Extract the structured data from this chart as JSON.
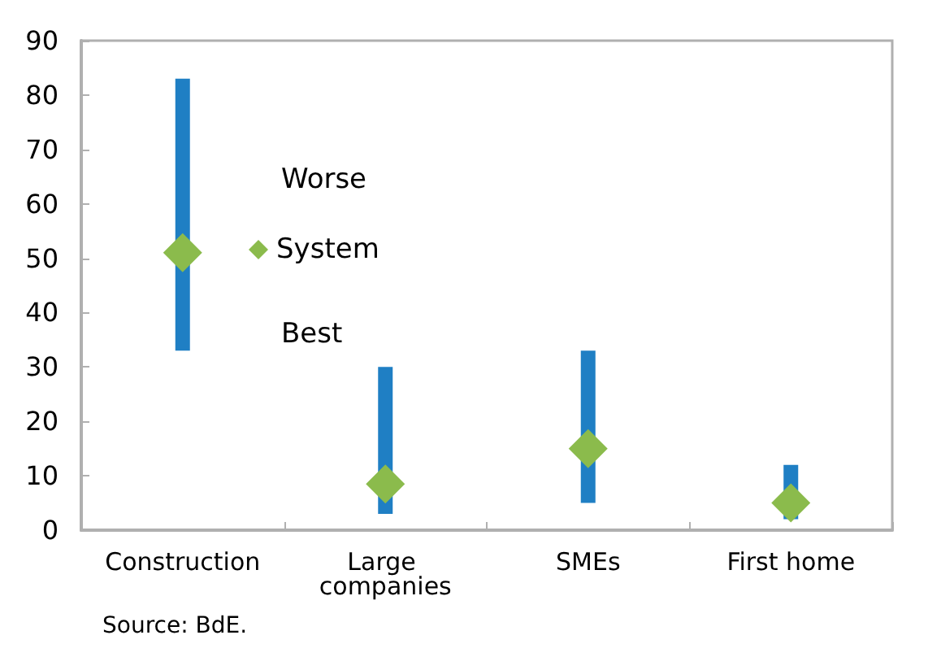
{
  "chart_data": {
    "type": "bar",
    "categories": [
      "Construction",
      "Large companies",
      "SMEs",
      "First home"
    ],
    "series": [
      {
        "color": "#1f7fc4",
        "base": [
          33,
          3,
          5,
          2
        ],
        "values": [
          50,
          27,
          28,
          10
        ]
      },
      {
        "type": "scatter",
        "name": "System",
        "color": "#8bbb4c",
        "x": [
          "Construction",
          "Large companies",
          "SMEs",
          "First home"
        ],
        "values": [
          51,
          8.5,
          15,
          5
        ]
      }
    ],
    "marker": "diamond",
    "ylim": [
      0,
      90
    ],
    "yticks": [
      0,
      10,
      20,
      30,
      40,
      50,
      60,
      70,
      80,
      90
    ],
    "legend": "top left",
    "annotations": [
      "Worse",
      "Best",
      "Source: BdE."
    ]
  }
}
